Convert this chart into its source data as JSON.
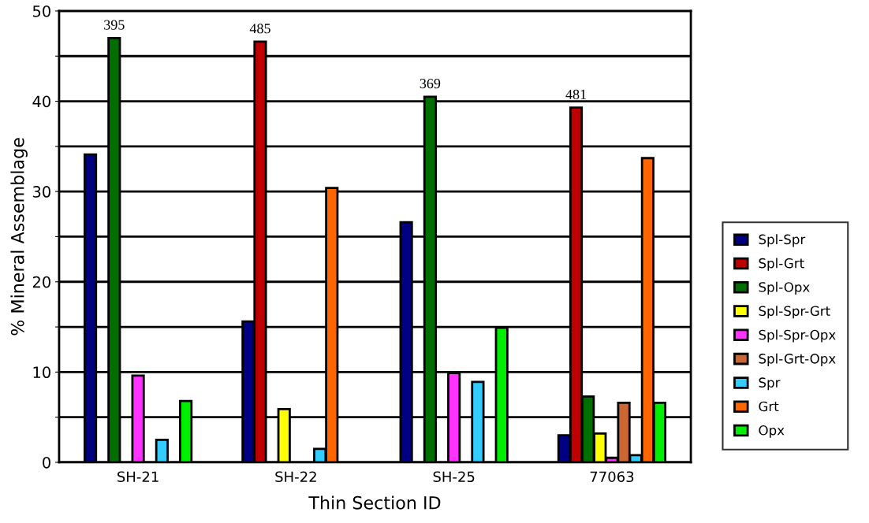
{
  "chart_data": {
    "type": "bar",
    "xlabel": "Thin Section ID",
    "ylabel": "% Mineral Assemblage",
    "categories": [
      "SH-21",
      "SH-22",
      "SH-25",
      "77063"
    ],
    "series": [
      {
        "name": "Spl-Spr",
        "color": "#000080",
        "values": [
          34.1,
          15.6,
          26.6,
          3.0
        ]
      },
      {
        "name": "Spl-Grt",
        "color": "#bf0000",
        "values": [
          null,
          46.6,
          null,
          39.3
        ]
      },
      {
        "name": "Spl-Opx",
        "color": "#006e00",
        "values": [
          47.0,
          null,
          40.5,
          7.3
        ]
      },
      {
        "name": "Spl-Spr-Grt",
        "color": "#ffff00",
        "values": [
          null,
          5.9,
          null,
          3.2
        ]
      },
      {
        "name": "Spl-Spr-Opx",
        "color": "#ff33ff",
        "values": [
          9.6,
          null,
          9.9,
          0.5
        ]
      },
      {
        "name": "Spl-Grt-Opx",
        "color": "#cc6633",
        "values": [
          null,
          null,
          null,
          6.6
        ]
      },
      {
        "name": "Spr",
        "color": "#33ccff",
        "values": [
          2.5,
          1.5,
          8.9,
          0.8
        ]
      },
      {
        "name": "Grt",
        "color": "#ff6600",
        "values": [
          null,
          30.4,
          null,
          33.7
        ]
      },
      {
        "name": "Opx",
        "color": "#00ee00",
        "values": [
          6.8,
          null,
          14.9,
          6.6
        ]
      }
    ],
    "ylim": [
      0,
      50
    ],
    "yticks": [
      0,
      {
        "value": 5,
        "label": null
      },
      10,
      {
        "value": 15,
        "label": null
      },
      20,
      {
        "value": 25,
        "label": null
      },
      30,
      {
        "value": 35,
        "label": null
      },
      40,
      {
        "value": 45,
        "label": null
      },
      50
    ],
    "grid": "y",
    "legend": "right",
    "annotations": [
      "395",
      "485",
      "369",
      "481"
    ]
  }
}
